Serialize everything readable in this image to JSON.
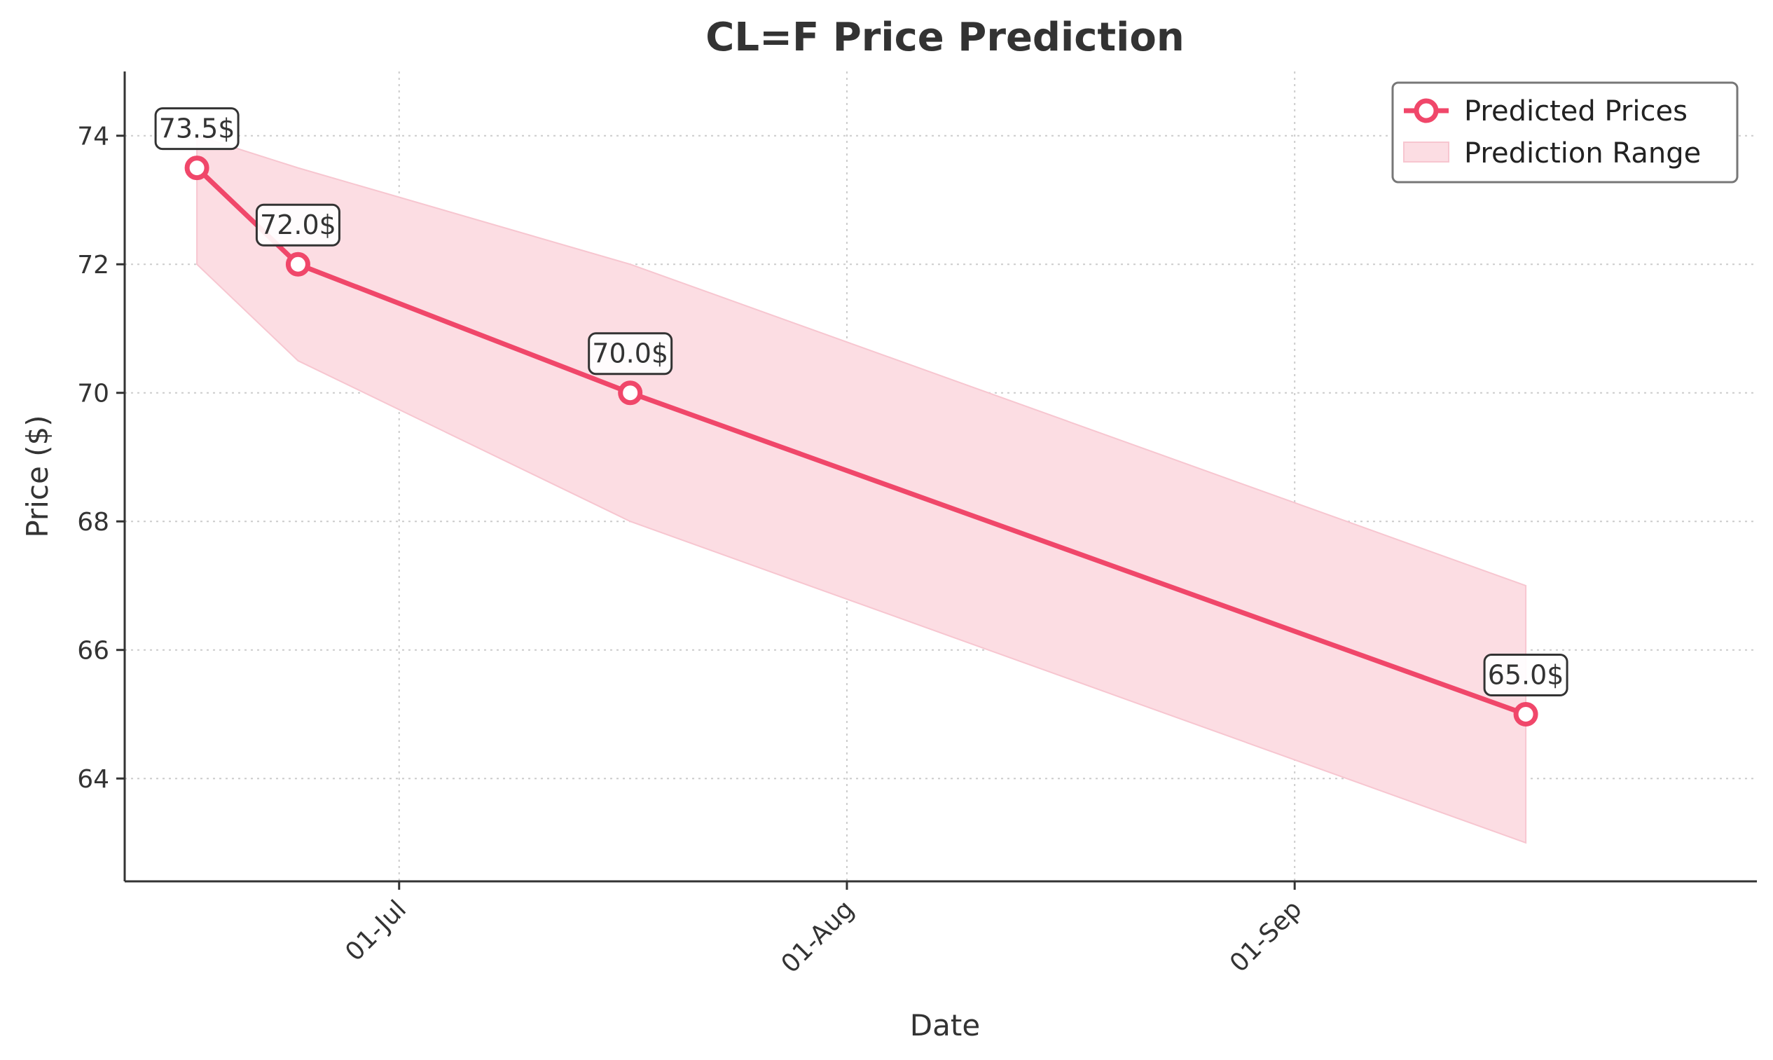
{
  "chart_data": {
    "type": "line",
    "title": "CL=F Price Prediction",
    "xlabel": "Date",
    "ylabel": "Price ($)",
    "x_ticks": [
      {
        "date": "2024-07-01",
        "label": "01-Jul"
      },
      {
        "date": "2024-08-01",
        "label": "01-Aug"
      },
      {
        "date": "2024-09-01",
        "label": "01-Sep"
      }
    ],
    "y_ticks": [
      64,
      66,
      68,
      70,
      72,
      74
    ],
    "xlim": [
      "2024-06-12",
      "2024-10-03"
    ],
    "ylim": [
      62.4,
      75.0
    ],
    "grid": true,
    "legend_position": "top-right",
    "colors": {
      "line": "#f0476a",
      "band": "#fcdde3",
      "band_edge": "#f7c6d0",
      "grid": "#cccccc",
      "axis": "#333333"
    },
    "series": [
      {
        "name": "Predicted Prices",
        "points": [
          {
            "x": "2024-06-17",
            "y": 73.5,
            "label": "73.5$"
          },
          {
            "x": "2024-06-24",
            "y": 72.0,
            "label": "72.0$"
          },
          {
            "x": "2024-07-17",
            "y": 70.0,
            "label": "70.0$"
          },
          {
            "x": "2024-09-17",
            "y": 65.0,
            "label": "65.0$"
          }
        ]
      }
    ],
    "band": {
      "name": "Prediction Range",
      "points": [
        {
          "x": "2024-06-17",
          "low": 72.0,
          "high": 74.0
        },
        {
          "x": "2024-06-24",
          "low": 70.5,
          "high": 73.5
        },
        {
          "x": "2024-07-17",
          "low": 68.0,
          "high": 72.0
        },
        {
          "x": "2024-09-17",
          "low": 63.0,
          "high": 67.0
        }
      ]
    }
  }
}
